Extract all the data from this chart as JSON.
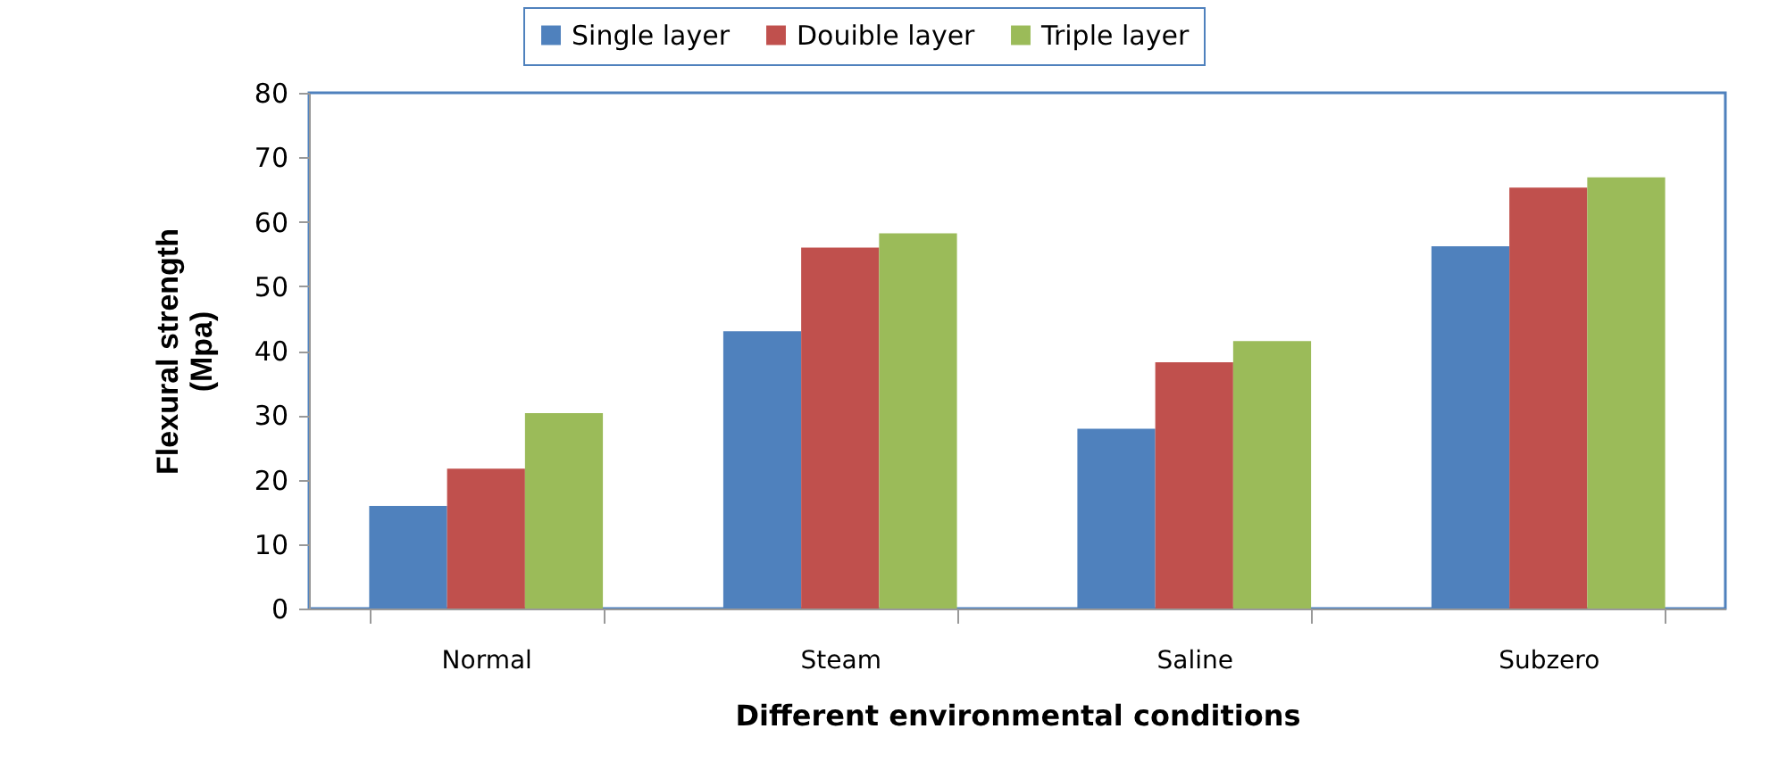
{
  "chart_data": {
    "type": "bar",
    "xlabel": "Different environmental conditions",
    "ylabel": "Flexural strength (Mpa)",
    "categories": [
      "Normal",
      "Steam",
      "Saline",
      "Subzero"
    ],
    "series": [
      {
        "name": "Single layer",
        "color": "#4f81bd",
        "values": [
          15.9,
          43.0,
          27.9,
          56.2
        ]
      },
      {
        "name": "Douible layer",
        "color": "#c0504d",
        "values": [
          21.7,
          56.0,
          38.2,
          65.3
        ]
      },
      {
        "name": "Triple layer",
        "color": "#9bbb59",
        "values": [
          30.3,
          58.2,
          41.5,
          66.9
        ]
      }
    ],
    "ylim": [
      0,
      80
    ],
    "yticks": [
      0,
      10,
      20,
      30,
      40,
      50,
      60,
      70,
      80
    ],
    "grid": false,
    "legend": "top"
  }
}
